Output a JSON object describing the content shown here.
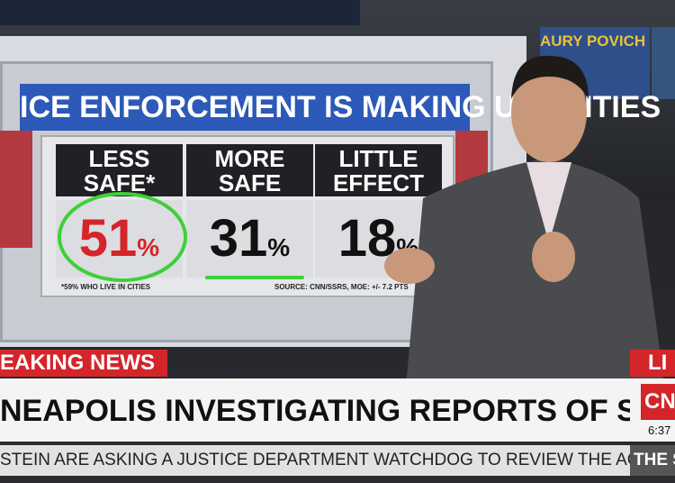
{
  "monitor": {
    "text": "AURY POVICH"
  },
  "graphic": {
    "title": "ICE ENFORCEMENT IS MAKING U.S. CITIES",
    "columns": [
      {
        "label": "LESS SAFE*",
        "value": "51"
      },
      {
        "label": "MORE SAFE",
        "value": "31"
      },
      {
        "label": "LITTLE EFFECT",
        "value": "18"
      }
    ],
    "unit": "%",
    "footnote": "*59% WHO LIVE IN CITIES",
    "source": "SOURCE: CNN/SSRS, MOE: +/- 7.2 PTS"
  },
  "banner": {
    "tag": "EAKING NEWS",
    "live": "LI",
    "headline": "NEAPOLIS INVESTIGATING REPORTS OF SHOOTING INVOLVING FEDS",
    "logo": "CNN",
    "time": "6:37",
    "ticker": "STEIN ARE ASKING A JUSTICE DEPARTMENT WATCHDOG TO REVIEW THE AGENC",
    "ticker_next": "THE S"
  }
}
